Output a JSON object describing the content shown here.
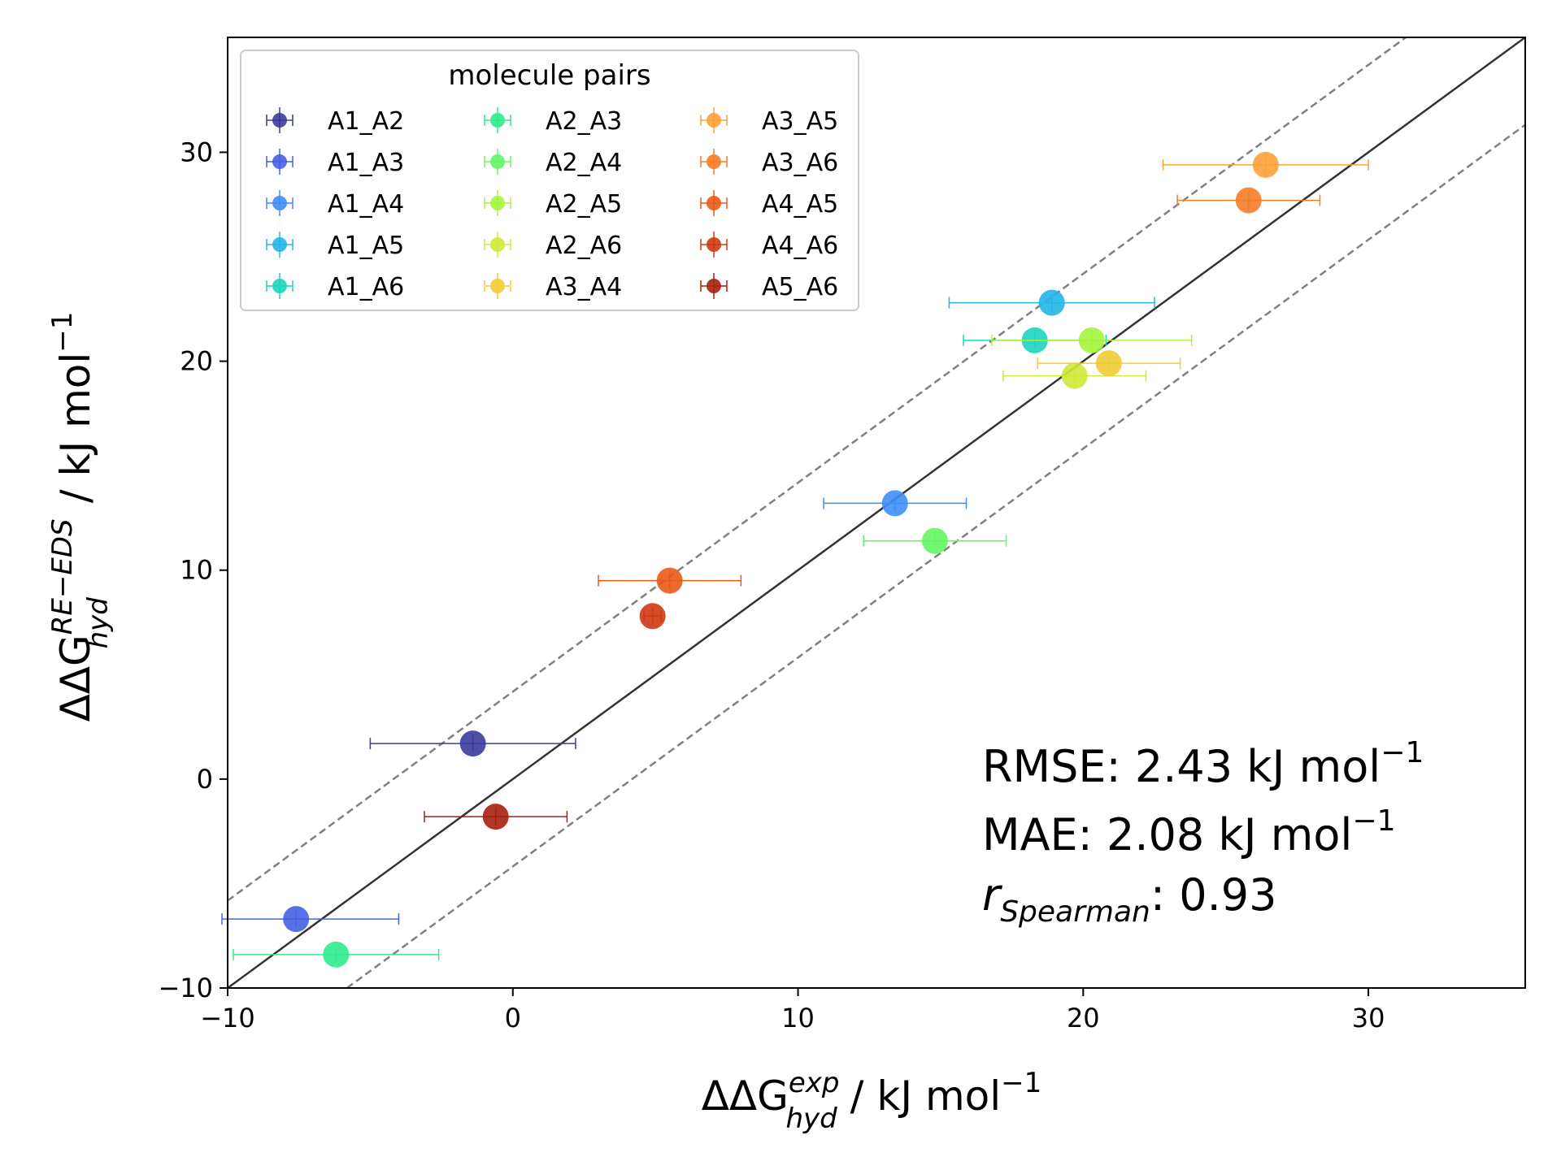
{
  "chart_data": {
    "type": "scatter",
    "xlabel_main": "ΔΔG",
    "xlabel_sup": "exp",
    "xlabel_sub": "hyd",
    "xlabel_unit": " / kJ mol",
    "xlabel_unit_exp": "−1",
    "ylabel_main": "ΔΔG",
    "ylabel_sup": "RE−EDS",
    "ylabel_sub": "hyd",
    "ylabel_unit": " / kJ mol",
    "ylabel_unit_exp": "−1",
    "xlim": [
      -10,
      35.5
    ],
    "ylim": [
      -10,
      35.5
    ],
    "xticks": [
      -10,
      0,
      10,
      20,
      30
    ],
    "yticks": [
      -10,
      0,
      10,
      20,
      30
    ],
    "xtick_labels": [
      "−10",
      "0",
      "10",
      "20",
      "30"
    ],
    "ytick_labels": [
      "−10",
      "0",
      "10",
      "20",
      "30"
    ],
    "reference_lines": [
      {
        "name": "identity",
        "offset": 0,
        "style": "solid",
        "color": "#333333"
      },
      {
        "name": "plus-tolerance",
        "offset": 4.184,
        "style": "dashed",
        "color": "#808080"
      },
      {
        "name": "minus-tolerance",
        "offset": -4.184,
        "style": "dashed",
        "color": "#808080"
      }
    ],
    "legend": {
      "title": "molecule pairs",
      "placement": "upper-left",
      "columns": 3
    },
    "series": [
      {
        "name": "A1_A2",
        "color": "#3b3b9c",
        "x": -1.4,
        "y": 1.7,
        "xerr": 3.6,
        "yerr": 0.4
      },
      {
        "name": "A1_A3",
        "color": "#4561e0",
        "x": -7.6,
        "y": -6.7,
        "xerr": 3.6,
        "yerr": 0.4
      },
      {
        "name": "A1_A4",
        "color": "#3f8ef7",
        "x": 13.4,
        "y": 13.2,
        "xerr": 2.5,
        "yerr": 0.4
      },
      {
        "name": "A1_A5",
        "color": "#22b5e8",
        "x": 18.9,
        "y": 22.8,
        "xerr": 3.6,
        "yerr": 0.4
      },
      {
        "name": "A1_A6",
        "color": "#1cd6c0",
        "x": 18.3,
        "y": 21.0,
        "xerr": 2.5,
        "yerr": 0.4
      },
      {
        "name": "A2_A3",
        "color": "#30ec8d",
        "x": -6.2,
        "y": -8.4,
        "xerr": 3.6,
        "yerr": 0.4
      },
      {
        "name": "A2_A4",
        "color": "#64f563",
        "x": 14.8,
        "y": 11.4,
        "xerr": 2.5,
        "yerr": 0.4
      },
      {
        "name": "A2_A5",
        "color": "#a4f53c",
        "x": 20.3,
        "y": 21.0,
        "xerr": 3.5,
        "yerr": 0.4
      },
      {
        "name": "A2_A6",
        "color": "#cfe936",
        "x": 19.7,
        "y": 19.3,
        "xerr": 2.5,
        "yerr": 0.4
      },
      {
        "name": "A3_A4",
        "color": "#f2cb35",
        "x": 20.9,
        "y": 19.9,
        "xerr": 2.5,
        "yerr": 0.4
      },
      {
        "name": "A3_A5",
        "color": "#fba23b",
        "x": 26.4,
        "y": 29.4,
        "xerr": 3.6,
        "yerr": 0.4
      },
      {
        "name": "A3_A6",
        "color": "#f57c27",
        "x": 25.8,
        "y": 27.7,
        "xerr": 2.5,
        "yerr": 0.4
      },
      {
        "name": "A4_A5",
        "color": "#ea5a17",
        "x": 5.5,
        "y": 9.5,
        "xerr": 2.5,
        "yerr": 0.4
      },
      {
        "name": "A4_A6",
        "color": "#cf3a14",
        "x": 4.9,
        "y": 7.8,
        "xerr": 0.3,
        "yerr": 0.4
      },
      {
        "name": "A5_A6",
        "color": "#a5200c",
        "x": -0.6,
        "y": -1.8,
        "xerr": 2.5,
        "yerr": 0.4
      }
    ],
    "annotations": {
      "rmse_label": "RMSE: 2.43 kJ mol",
      "rmse_exp": "−1",
      "mae_label": "MAE: 2.08 kJ mol",
      "mae_exp": "−1",
      "spearman_symbol": "r",
      "spearman_sub": "Spearman",
      "spearman_value": ": 0.93"
    }
  }
}
